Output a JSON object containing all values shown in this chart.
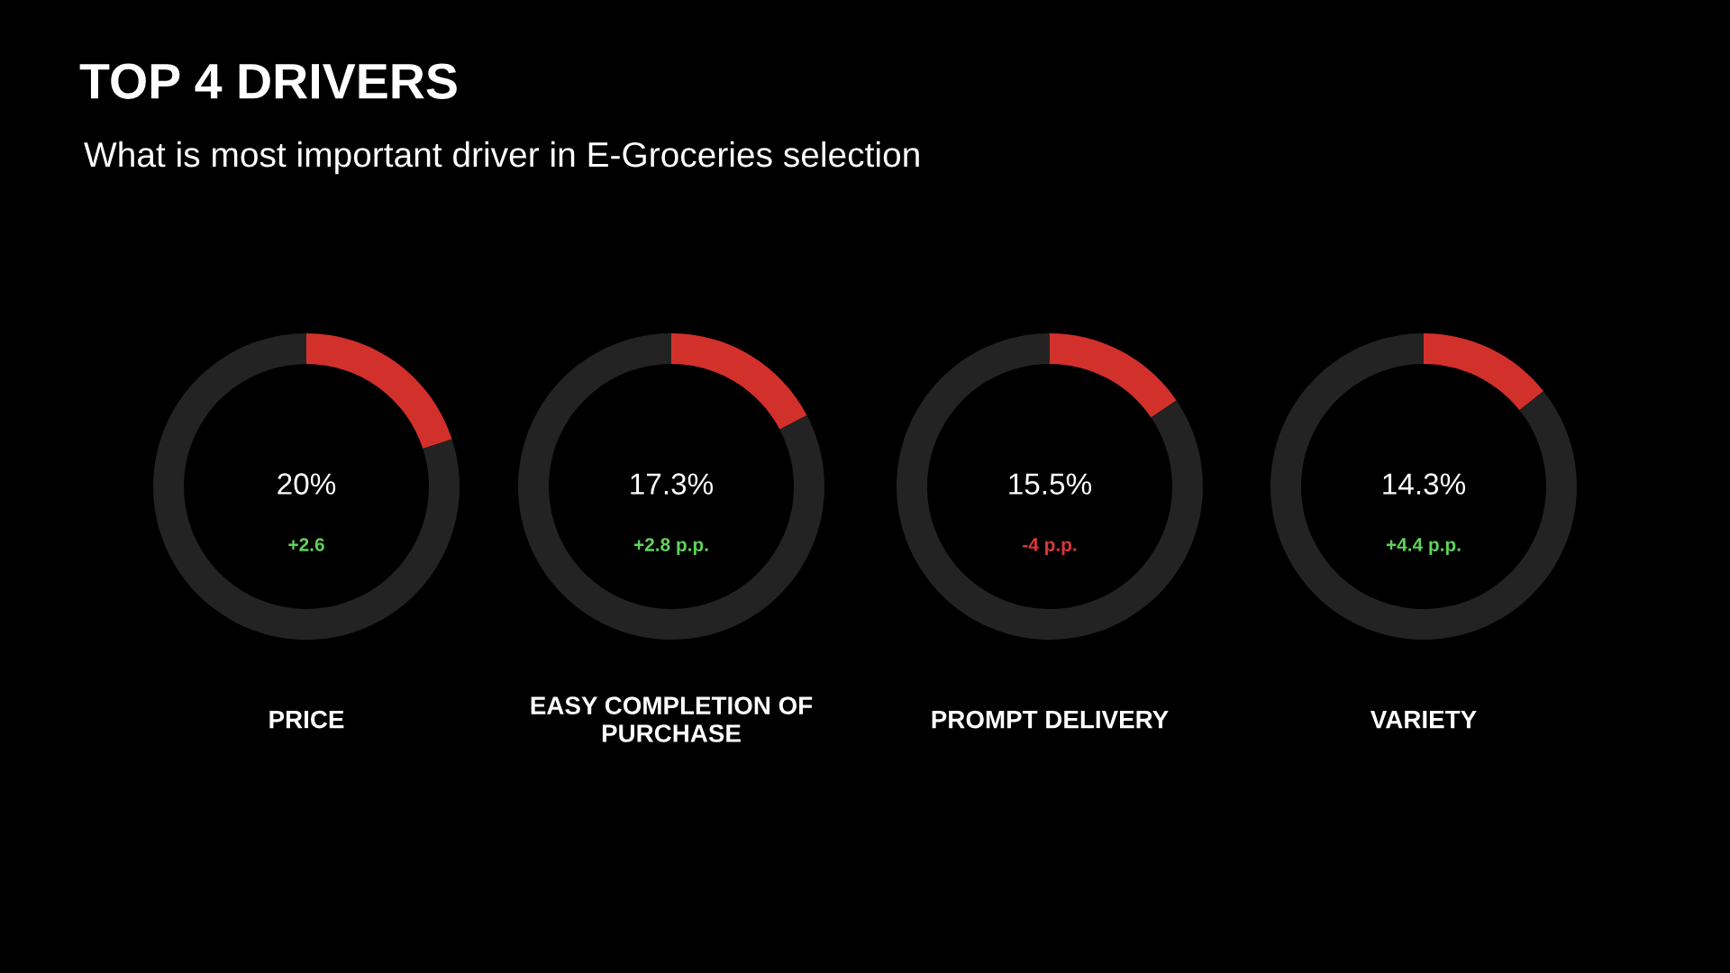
{
  "chart_data": [
    {
      "type": "donut",
      "title": "TOP 4 DRIVERS",
      "subtitle": "What is most important driver in E-Groceries selection",
      "xlabel": "PRICE",
      "categories": [
        null,
        null
      ],
      "values": [
        20,
        80
      ],
      "colors": [
        "#d2302b",
        "#232323"
      ],
      "value_labels": [
        "20%",
        null
      ],
      "annotations": [
        "+2.6"
      ]
    },
    {
      "type": "donut",
      "xlabel": "EASY COMPLETION OF\nPURCHASE",
      "categories": [
        null,
        null
      ],
      "values": [
        17.3,
        82.7
      ],
      "colors": [
        "#d2302b",
        "#232323"
      ],
      "value_labels": [
        "17.3%",
        null
      ],
      "annotations": [
        "+2.8 p.p."
      ]
    },
    {
      "type": "donut",
      "xlabel": "PROMPT DELIVERY",
      "categories": [
        null,
        null
      ],
      "values": [
        15.5,
        84.5
      ],
      "colors": [
        "#d2302b",
        "#232323"
      ],
      "value_labels": [
        "15.5%",
        null
      ],
      "annotations": [
        "-4 p.p."
      ]
    },
    {
      "type": "donut",
      "xlabel": "VARIETY",
      "categories": [
        null,
        null
      ],
      "values": [
        14.3,
        85.7
      ],
      "colors": [
        "#d2302b",
        "#232323"
      ],
      "value_labels": [
        "14.3%",
        null
      ],
      "annotations": [
        "+4.4 p.p."
      ]
    }
  ]
}
